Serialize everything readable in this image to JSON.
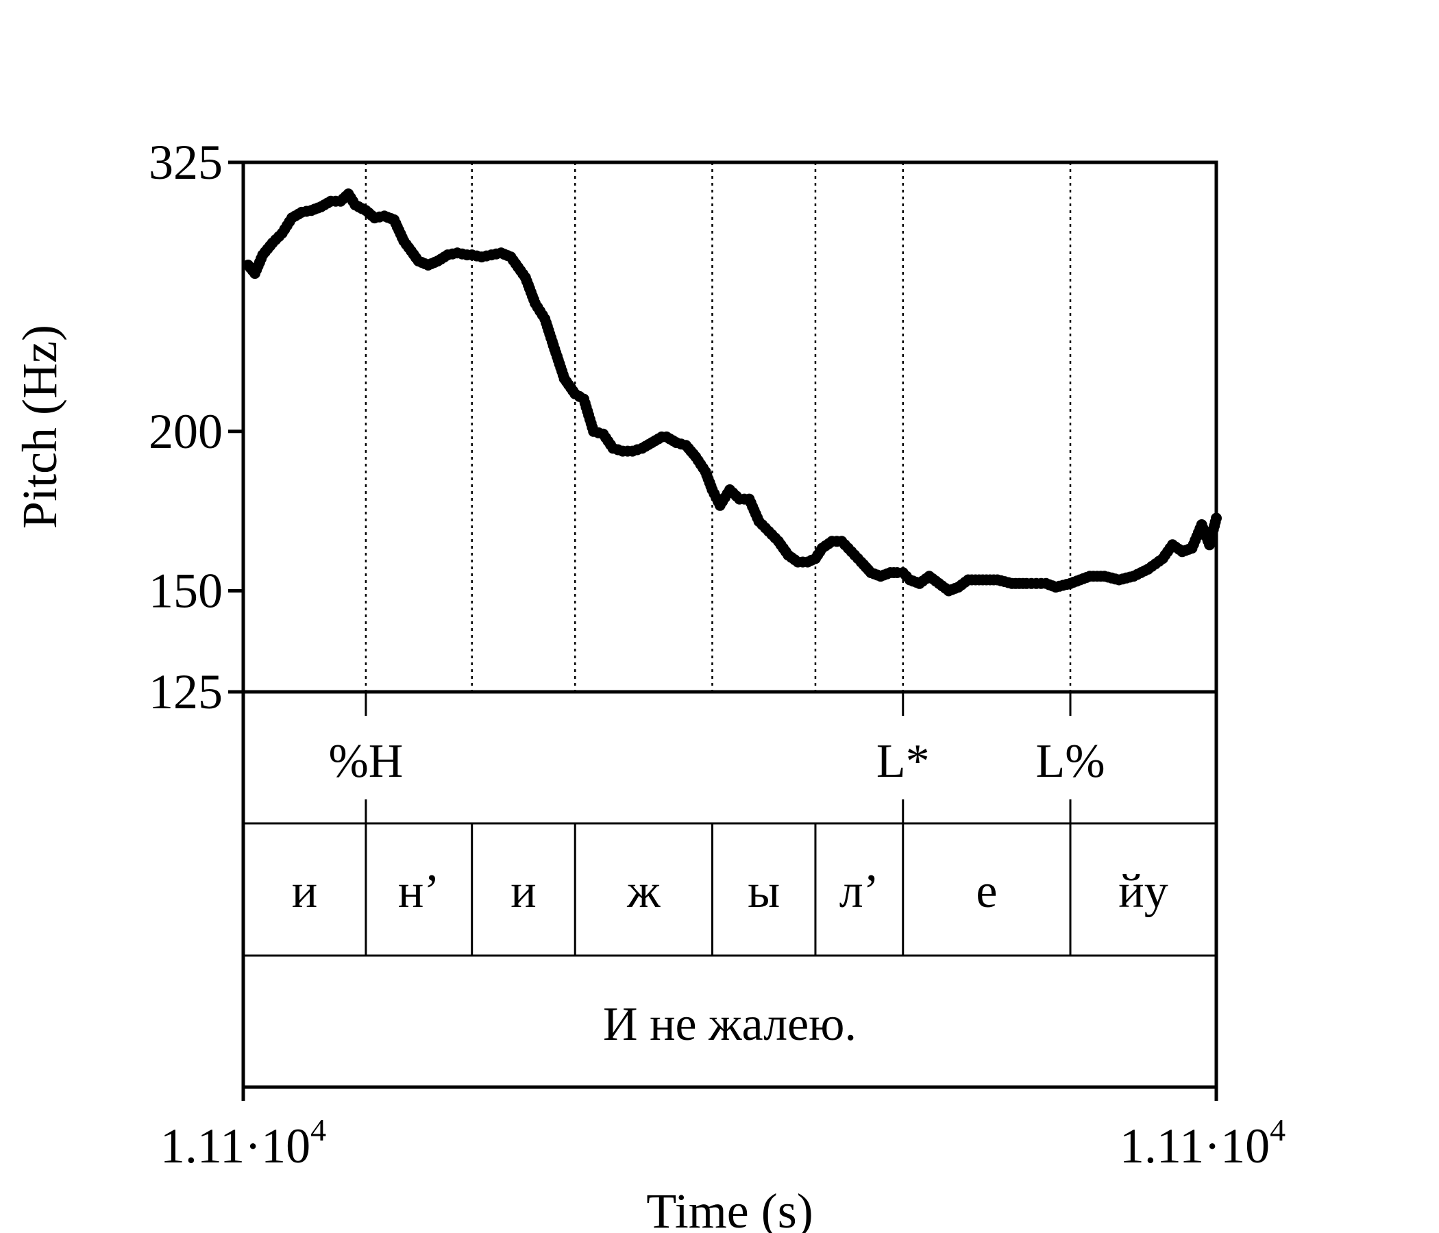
{
  "chart_data": {
    "type": "line",
    "title": "",
    "xlabel": "Time (s)",
    "ylabel": "Pitch (Hz)",
    "scale": "log",
    "ylim": [
      125,
      325
    ],
    "xlim": [
      0,
      1
    ],
    "yticks": [
      {
        "value": 125,
        "label": "125"
      },
      {
        "value": 150,
        "label": "150"
      },
      {
        "value": 200,
        "label": "200"
      },
      {
        "value": 325,
        "label": "325"
      }
    ],
    "xtick_left": {
      "base": "1.11·10",
      "exp": "4"
    },
    "xtick_right": {
      "base": "1.11·10",
      "exp": "4"
    },
    "boundaries": [
      0.126,
      0.235,
      0.341,
      0.482,
      0.588,
      0.678,
      0.85
    ],
    "tones": [
      {
        "label": "%H",
        "x": 0.126
      },
      {
        "label": "L*",
        "x": 0.678
      },
      {
        "label": "L%",
        "x": 0.85
      }
    ],
    "segments": [
      {
        "label": "и",
        "start": 0.0,
        "end": 0.126
      },
      {
        "label": "н’",
        "start": 0.126,
        "end": 0.235
      },
      {
        "label": "и",
        "start": 0.235,
        "end": 0.341
      },
      {
        "label": "ж",
        "start": 0.341,
        "end": 0.482
      },
      {
        "label": "ы",
        "start": 0.482,
        "end": 0.588
      },
      {
        "label": "л’",
        "start": 0.588,
        "end": 0.678
      },
      {
        "label": "е",
        "start": 0.678,
        "end": 0.85
      },
      {
        "label": "йу",
        "start": 0.85,
        "end": 1.0
      }
    ],
    "sentence": "И не жалею.",
    "series": [
      {
        "x": [
          0.005,
          0.012,
          0.02,
          0.03,
          0.04,
          0.05,
          0.06,
          0.07,
          0.08,
          0.09,
          0.1,
          0.108,
          0.115,
          0.122,
          0.126,
          0.135,
          0.145,
          0.155,
          0.165,
          0.18,
          0.19,
          0.2,
          0.21,
          0.22,
          0.23,
          0.235,
          0.245,
          0.255,
          0.265,
          0.275,
          0.29,
          0.3,
          0.31,
          0.32,
          0.33,
          0.341,
          0.35,
          0.36,
          0.37,
          0.38,
          0.39,
          0.4,
          0.41,
          0.42,
          0.43,
          0.435,
          0.445,
          0.455,
          0.465,
          0.475,
          0.482,
          0.49,
          0.5,
          0.51,
          0.52,
          0.53,
          0.54,
          0.55,
          0.56,
          0.57,
          0.58,
          0.588,
          0.595,
          0.605,
          0.615,
          0.625,
          0.635,
          0.645,
          0.655,
          0.665,
          0.672,
          0.678,
          0.685,
          0.695,
          0.705,
          0.715,
          0.725,
          0.735,
          0.745,
          0.76,
          0.775,
          0.79,
          0.805,
          0.815,
          0.825,
          0.835,
          0.85,
          0.86,
          0.87,
          0.885,
          0.9,
          0.915,
          0.93,
          0.945,
          0.955,
          0.965,
          0.975,
          0.985,
          0.993,
          1.0
        ],
        "y": [
          270,
          266,
          275,
          281,
          286,
          294,
          297,
          298,
          300,
          303,
          303,
          307,
          301,
          299,
          298,
          294,
          295,
          293,
          282,
          272,
          270,
          272,
          275,
          276,
          275,
          275,
          274,
          275,
          276,
          274,
          264,
          252,
          245,
          232,
          220,
          214,
          212,
          200,
          199,
          194,
          193,
          193,
          194,
          196,
          198,
          198,
          196,
          195,
          191,
          186,
          180,
          175,
          180,
          177,
          177,
          170,
          167,
          164,
          160,
          158,
          158,
          159,
          162,
          164,
          164,
          161,
          158,
          155,
          154,
          155,
          155,
          155,
          153,
          152,
          154,
          152,
          150,
          151,
          153,
          153,
          153,
          152,
          152,
          152,
          152,
          151,
          152,
          153,
          154,
          154,
          153,
          154,
          156,
          159,
          163,
          161,
          162,
          169,
          163,
          171
        ]
      }
    ]
  }
}
